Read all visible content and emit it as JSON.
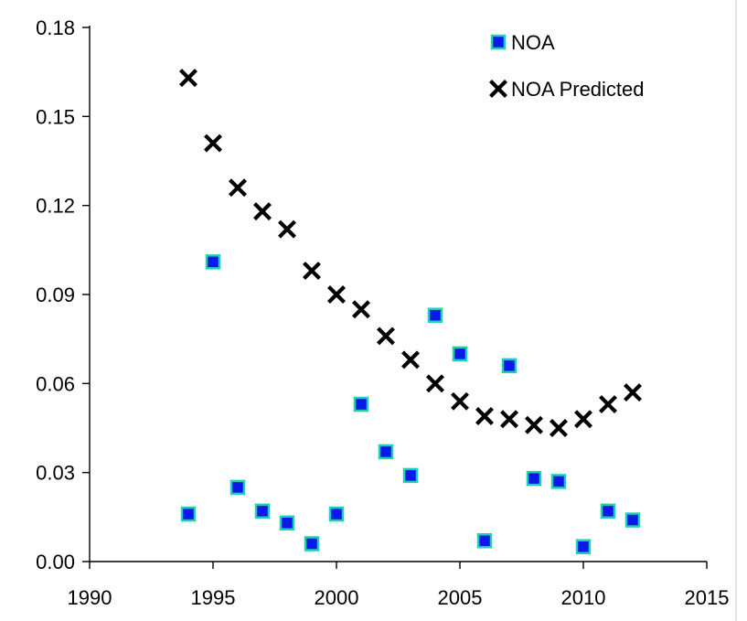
{
  "chart_data": {
    "type": "scatter",
    "title": "",
    "xlabel": "",
    "ylabel": "",
    "xlim": [
      1990,
      2015
    ],
    "ylim": [
      0,
      0.18
    ],
    "x_ticks": [
      1990,
      1995,
      2000,
      2005,
      2010,
      2015
    ],
    "y_ticks": [
      0,
      0.03,
      0.06,
      0.09,
      0.12,
      0.15,
      0.18
    ],
    "x_tick_labels": [
      "1990",
      "1995",
      "2000",
      "2005",
      "2010",
      "2015"
    ],
    "y_tick_labels": [
      "0.00",
      "0.03",
      "0.06",
      "0.09",
      "0.12",
      "0.15",
      "0.18"
    ],
    "grid": false,
    "legend_position": "top-right",
    "series": [
      {
        "name": "NOA",
        "marker": "square",
        "fill_color": "#0a18e8",
        "edge_color": "#1fd1b4",
        "x": [
          1994,
          1995,
          1996,
          1997,
          1998,
          1999,
          2000,
          2001,
          2002,
          2003,
          2004,
          2005,
          2006,
          2007,
          2008,
          2009,
          2010,
          2011,
          2012
        ],
        "y": [
          0.016,
          0.101,
          0.025,
          0.017,
          0.013,
          0.006,
          0.016,
          0.053,
          0.037,
          0.029,
          0.083,
          0.07,
          0.007,
          0.066,
          0.028,
          0.027,
          0.005,
          0.017,
          0.014
        ]
      },
      {
        "name": "NOA Predicted",
        "marker": "x",
        "color": "#000000",
        "x": [
          1994,
          1995,
          1996,
          1997,
          1998,
          1999,
          2000,
          2001,
          2002,
          2003,
          2004,
          2005,
          2006,
          2007,
          2008,
          2009,
          2010,
          2011,
          2012
        ],
        "y": [
          0.163,
          0.141,
          0.126,
          0.118,
          0.112,
          0.098,
          0.09,
          0.085,
          0.076,
          0.068,
          0.06,
          0.054,
          0.049,
          0.048,
          0.046,
          0.045,
          0.048,
          0.053,
          0.057
        ]
      }
    ]
  }
}
